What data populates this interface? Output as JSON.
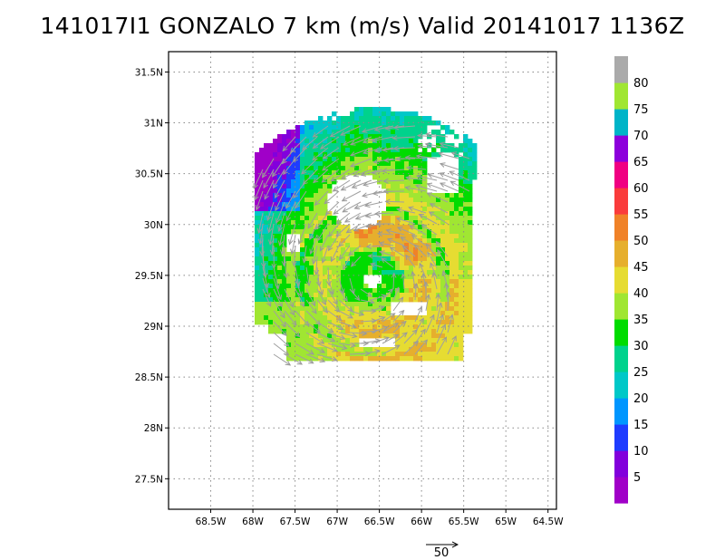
{
  "title": "141017I1 GONZALO 7 km (m/s) Valid 20141017 1136Z",
  "map": {
    "lon_range": [
      -69,
      -64.4
    ],
    "lat_range": [
      27.2,
      31.7
    ],
    "lon_ticks": [
      {
        "value": -68.5,
        "label": "68.5W"
      },
      {
        "value": -68,
        "label": "68W"
      },
      {
        "value": -67.5,
        "label": "67.5W"
      },
      {
        "value": -67,
        "label": "67W"
      },
      {
        "value": -66.5,
        "label": "66.5W"
      },
      {
        "value": -66,
        "label": "66W"
      },
      {
        "value": -65.5,
        "label": "65.5W"
      },
      {
        "value": -65,
        "label": "65W"
      },
      {
        "value": -64.5,
        "label": "64.5W"
      }
    ],
    "lat_ticks": [
      {
        "value": 27.5,
        "label": "27.5N"
      },
      {
        "value": 28,
        "label": "28N"
      },
      {
        "value": 28.5,
        "label": "28.5N"
      },
      {
        "value": 29,
        "label": "29N"
      },
      {
        "value": 29.5,
        "label": "29.5N"
      },
      {
        "value": 30,
        "label": "30N"
      },
      {
        "value": 30.5,
        "label": "30.5N"
      },
      {
        "value": 31,
        "label": "31N"
      },
      {
        "value": 31.5,
        "label": "31.5N"
      }
    ],
    "grid": "dotted",
    "center": {
      "lon": -66.58,
      "lat": 29.45
    }
  },
  "colorbar": {
    "colors": [
      "#a000c8",
      "#8200dc",
      "#1e3cff",
      "#0096ff",
      "#00c8c8",
      "#00d28c",
      "#00dc00",
      "#a0e632",
      "#e6dc32",
      "#e6af2d",
      "#f08228",
      "#fa3c3c",
      "#f00082",
      "#8c00dc",
      "#00b4c8",
      "#a0e632",
      "#aaaaaa"
    ],
    "labels": [
      "5",
      "10",
      "15",
      "20",
      "25",
      "30",
      "35",
      "40",
      "45",
      "50",
      "55",
      "60",
      "65",
      "70",
      "75",
      "80"
    ]
  },
  "reference_vector": {
    "label": "50",
    "magnitude": 50
  }
}
